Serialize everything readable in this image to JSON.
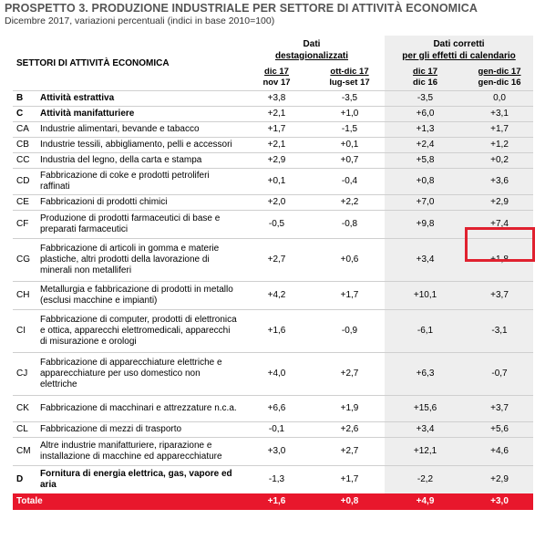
{
  "title": "PROSPETTO 3. PRODUZIONE INDUSTRIALE PER SETTORE DI ATTIVITÀ ECONOMICA",
  "subtitle": "Dicembre 2017, variazioni percentuali (indici in base 2010=100)",
  "header": {
    "sector_label": "SETTORI DI ATTIVITÀ ECONOMICA",
    "group1_line1": "Dati",
    "group1_line2": "destagionalizzati",
    "group2_line1": "Dati corretti",
    "group2_line2": "per gli effetti di calendario",
    "col1_top": "dic 17",
    "col1_bottom": "nov 17",
    "col2_top": "ott-dic 17",
    "col2_bottom": "lug-set 17",
    "col3_top": "dic 17",
    "col3_bottom": "dic 16",
    "col4_top": "gen-dic 17",
    "col4_bottom": "gen-dic 16"
  },
  "rows": [
    {
      "code": "B",
      "name": "Attività estrattiva",
      "v1": "+3,8",
      "v2": "-3,5",
      "v3": "-3,5",
      "v4": "0,0",
      "bold": true
    },
    {
      "code": "C",
      "name": "Attività manifatturiere",
      "v1": "+2,1",
      "v2": "+1,0",
      "v3": "+6,0",
      "v4": "+3,1",
      "bold": true
    },
    {
      "code": "CA",
      "name": "Industrie alimentari, bevande e tabacco",
      "v1": "+1,7",
      "v2": "-1,5",
      "v3": "+1,3",
      "v4": "+1,7"
    },
    {
      "code": "CB",
      "name": "Industrie tessili, abbigliamento, pelli e accessori",
      "v1": "+2,1",
      "v2": "+0,1",
      "v3": "+2,4",
      "v4": "+1,2"
    },
    {
      "code": "CC",
      "name": "Industria del legno, della carta e stampa",
      "v1": "+2,9",
      "v2": "+0,7",
      "v3": "+5,8",
      "v4": "+0,2"
    },
    {
      "code": "CD",
      "name": "Fabbricazione di coke e prodotti petroliferi raffinati",
      "v1": "+0,1",
      "v2": "-0,4",
      "v3": "+0,8",
      "v4": "+3,6"
    },
    {
      "code": "CE",
      "name": "Fabbricazioni di prodotti chimici",
      "v1": "+2,0",
      "v2": "+2,2",
      "v3": "+7,0",
      "v4": "+2,9"
    },
    {
      "code": "CF",
      "name": "Produzione di prodotti farmaceutici di base e preparati farmaceutici",
      "v1": "-0,5",
      "v2": "-0,8",
      "v3": "+9,8",
      "v4": "+7,4"
    },
    {
      "code": "CG",
      "name": "Fabbricazione di articoli in gomma e materie plastiche, altri prodotti della lavorazione di minerali non metalliferi",
      "v1": "+2,7",
      "v2": "+0,6",
      "v3": "+3,4",
      "v4": "+1,8"
    },
    {
      "code": "CH",
      "name": "Metallurgia e fabbricazione di prodotti in metallo (esclusi macchine e impianti)",
      "v1": "+4,2",
      "v2": "+1,7",
      "v3": "+10,1",
      "v4": "+3,7"
    },
    {
      "code": "CI",
      "name": "Fabbricazione di computer, prodotti di elettronica e ottica, apparecchi elettromedicali, apparecchi di misurazione e orologi",
      "v1": "+1,6",
      "v2": "-0,9",
      "v3": "-6,1",
      "v4": "-3,1"
    },
    {
      "code": "CJ",
      "name": "Fabbricazione di apparecchiature elettriche e apparecchiature per uso domestico non elettriche",
      "v1": "+4,0",
      "v2": "+2,7",
      "v3": "+6,3",
      "v4": "-0,7"
    },
    {
      "code": "CK",
      "name": "Fabbricazione di macchinari e attrezzature n.c.a.",
      "v1": "+6,6",
      "v2": "+1,9",
      "v3": "+15,6",
      "v4": "+3,7"
    },
    {
      "code": "CL",
      "name": "Fabbricazione di mezzi di trasporto",
      "v1": "-0,1",
      "v2": "+2,6",
      "v3": "+3,4",
      "v4": "+5,6"
    },
    {
      "code": "CM",
      "name": "Altre industrie manifatturiere, riparazione e installazione di macchine ed apparecchiature",
      "v1": "+3,0",
      "v2": "+2,7",
      "v3": "+12,1",
      "v4": "+4,6"
    },
    {
      "code": "D",
      "name": "Fornitura di energia elettrica, gas, vapore ed aria",
      "v1": "-1,3",
      "v2": "+1,7",
      "v3": "-2,2",
      "v4": "+2,9",
      "bold": true
    }
  ],
  "total": {
    "name": "Totale",
    "v1": "+1,6",
    "v2": "+0,8",
    "v3": "+4,9",
    "v4": "+3,0"
  }
}
